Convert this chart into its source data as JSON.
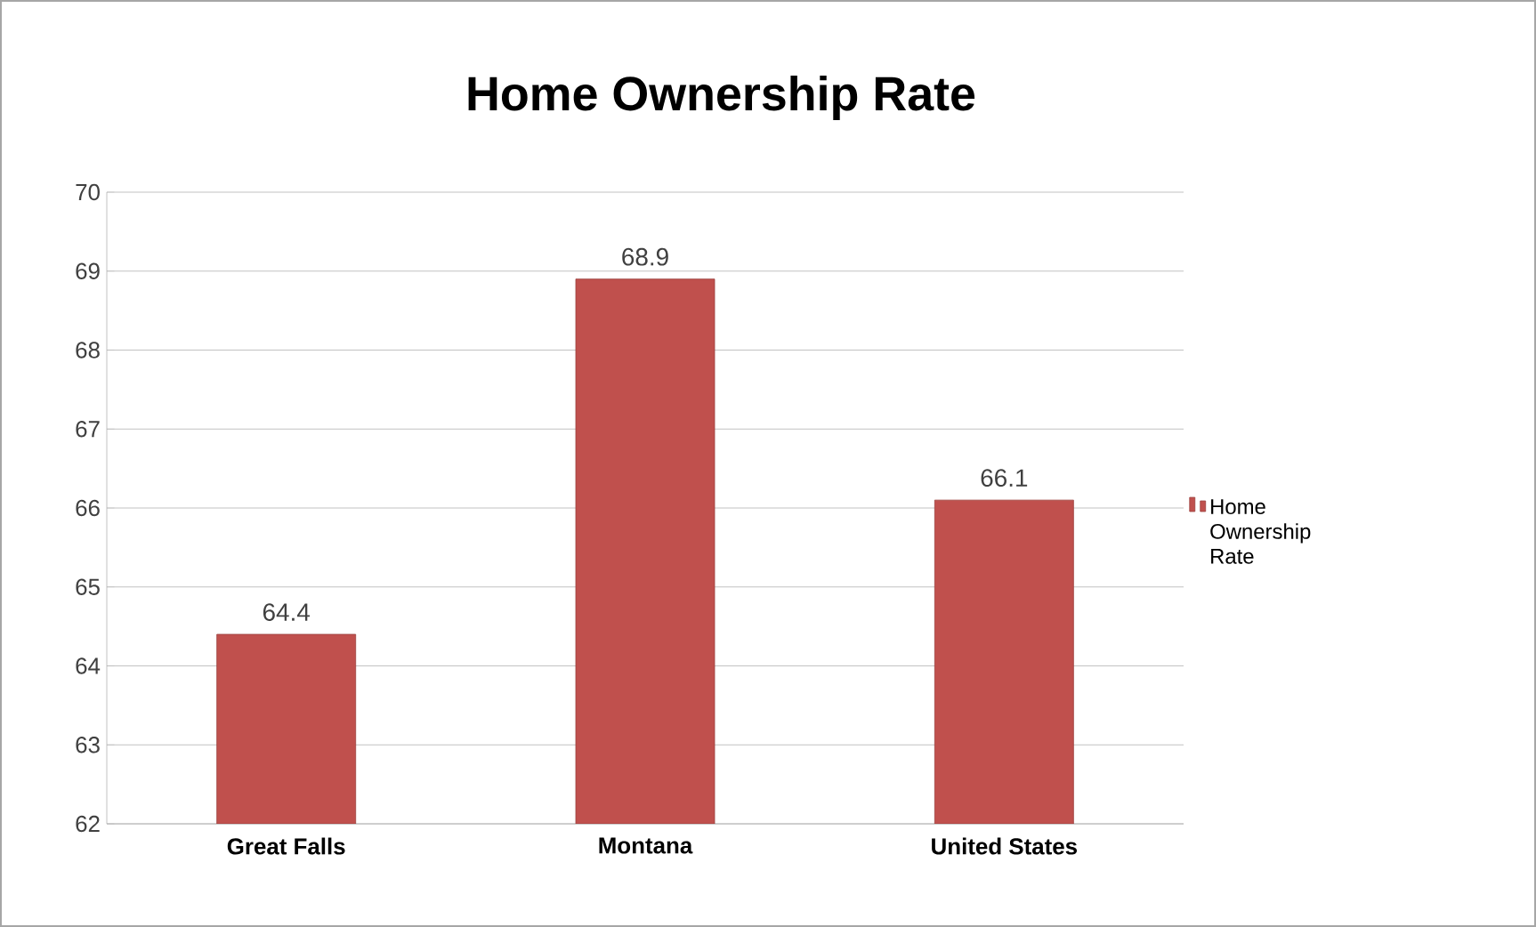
{
  "chart_data": {
    "type": "bar",
    "title": "Home Ownership Rate",
    "categories": [
      "Great Falls",
      "Montana",
      "United States"
    ],
    "series": [
      {
        "name": "Home Ownership Rate",
        "color": "#c0504d",
        "values": [
          64.4,
          68.9,
          66.1
        ]
      }
    ],
    "ylim": [
      62,
      70
    ],
    "yticks": [
      62,
      63,
      64,
      65,
      66,
      67,
      68,
      69,
      70
    ],
    "grid": "y",
    "legend": "right",
    "data_labels": true
  }
}
